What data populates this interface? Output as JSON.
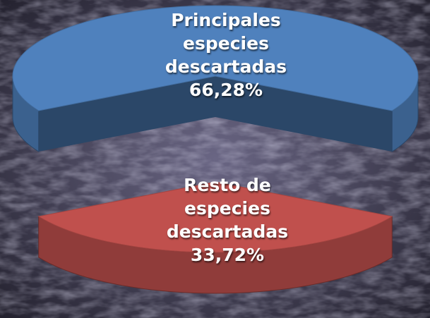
{
  "chart_data": {
    "type": "pie3d",
    "categories": [
      "Principales especies descartadas",
      "Resto de especies descartadas"
    ],
    "values": [
      66.28,
      33.72
    ],
    "value_labels": [
      "66,28%",
      "33,72%"
    ],
    "colors": [
      "#4f81bd",
      "#c0504d"
    ]
  }
}
